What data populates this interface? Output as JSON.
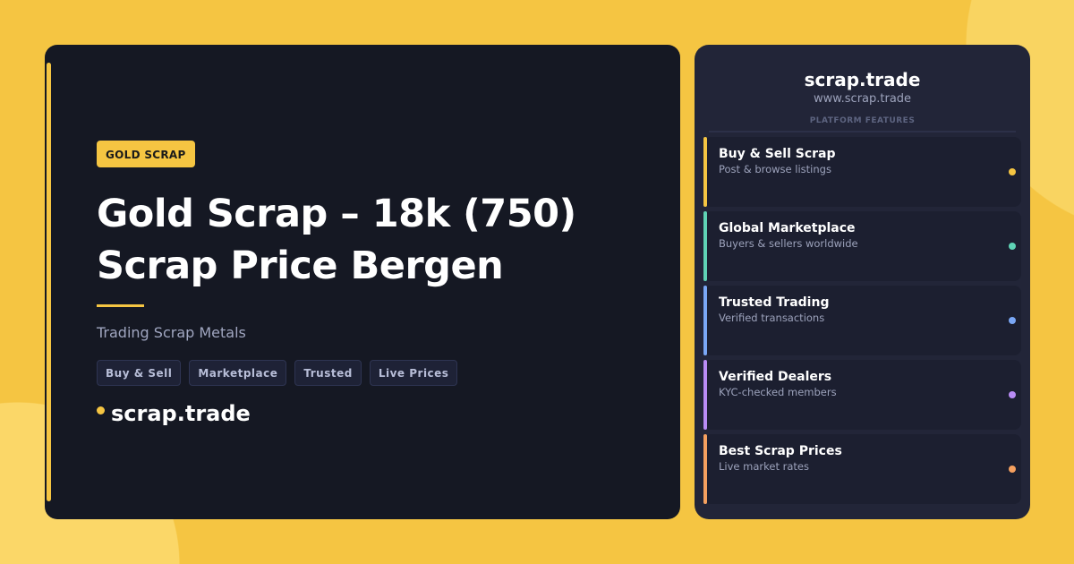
{
  "left": {
    "badge": "GOLD SCRAP",
    "title": "Gold Scrap – 18k (750) Scrap Price Bergen",
    "subtitle": "Trading Scrap Metals",
    "tags": [
      "Buy & Sell",
      "Marketplace",
      "Trusted",
      "Live Prices"
    ],
    "brand": "scrap.trade"
  },
  "right": {
    "title": "scrap.trade",
    "url": "www.scrap.trade",
    "section_label": "PLATFORM FEATURES",
    "features": [
      {
        "title": "Buy & Sell Scrap",
        "subtitle": "Post & browse listings",
        "color": "#f5c542"
      },
      {
        "title": "Global Marketplace",
        "subtitle": "Buyers & sellers worldwide",
        "color": "#5fd3b5"
      },
      {
        "title": "Trusted Trading",
        "subtitle": "Verified transactions",
        "color": "#7aa7f5"
      },
      {
        "title": "Verified Dealers",
        "subtitle": "KYC-checked members",
        "color": "#b98cf5"
      },
      {
        "title": "Best Scrap Prices",
        "subtitle": "Live market rates",
        "color": "#f5a05f"
      }
    ]
  },
  "colors": {
    "accent": "#f5c542",
    "background": "#f5c542",
    "card": "#151823",
    "panel": "#222538"
  }
}
